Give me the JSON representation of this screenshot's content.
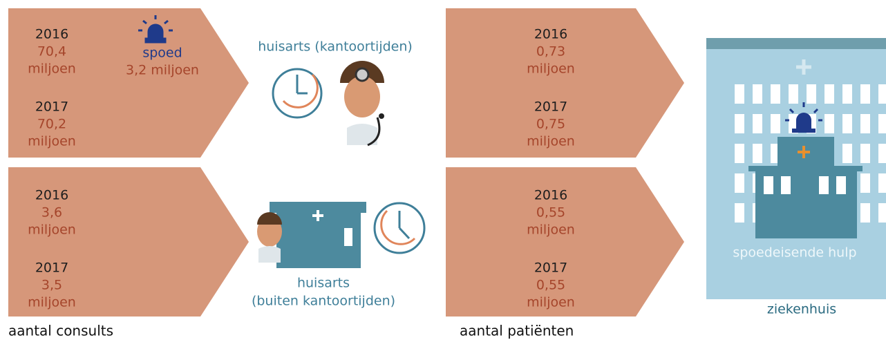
{
  "consults": {
    "label": "aantal consults",
    "office": {
      "entries": [
        {
          "year": "2016",
          "value": "70,4",
          "unit": "miljoen"
        },
        {
          "year": "2017",
          "value": "70,2",
          "unit": "miljoen"
        }
      ],
      "spoed": {
        "label": "spoed",
        "value": "3,2 miljoen"
      }
    },
    "after_hours": {
      "entries": [
        {
          "year": "2016",
          "value": "3,6",
          "unit": "miljoen"
        },
        {
          "year": "2017",
          "value": "3,5",
          "unit": "miljoen"
        }
      ]
    }
  },
  "middle": {
    "office": "huisarts (kantoortijden)",
    "after_hours": [
      "huisarts",
      "(buiten kantoortijden)"
    ]
  },
  "patients": {
    "label": "aantal patiënten",
    "office": {
      "entries": [
        {
          "year": "2016",
          "value": "0,73",
          "unit": "miljoen"
        },
        {
          "year": "2017",
          "value": "0,75",
          "unit": "miljoen"
        }
      ]
    },
    "after_hours": {
      "entries": [
        {
          "year": "2016",
          "value": "0,55",
          "unit": "miljoen"
        },
        {
          "year": "2017",
          "value": "0,55",
          "unit": "miljoen"
        }
      ]
    }
  },
  "hospital": {
    "department": "spoedeisende hulp",
    "label": "ziekenhuis"
  }
}
